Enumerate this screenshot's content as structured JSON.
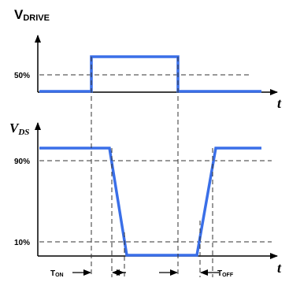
{
  "vdrive": {
    "main": "V",
    "sub": "DRIVE"
  },
  "vds": {
    "main": "V",
    "sub": "DS"
  },
  "time_label": "t",
  "levels": {
    "p50": "50%",
    "p90": "90%",
    "p10": "10%"
  },
  "ton": {
    "main": "T",
    "sub": "ON"
  },
  "toff": {
    "main": "T",
    "sub": "OFF"
  },
  "colors": {
    "waveform": "#3a6fe8",
    "axes": "#000000",
    "guide": "#333333"
  }
}
